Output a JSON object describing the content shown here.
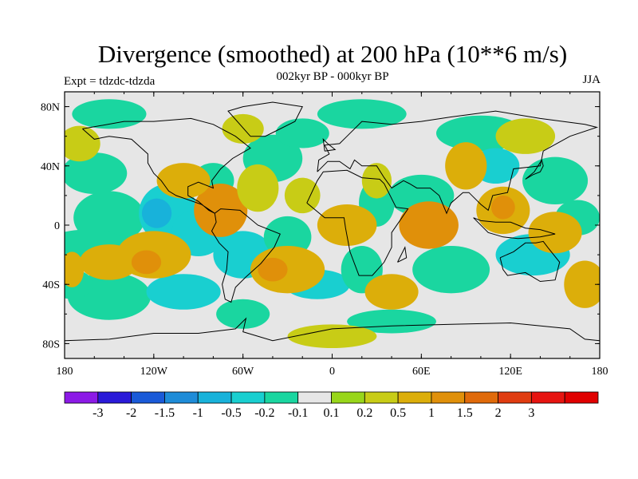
{
  "title": "Divergence (smoothed) at 200 hPa (10**6 m/s)",
  "subtitle": "002kyr BP - 000kyr BP",
  "experiment": "Expt = tdzdc-tdzda",
  "season": "JJA",
  "map": {
    "lon_ticks": [
      "180",
      "120W",
      "60W",
      "0",
      "60E",
      "120E",
      "180"
    ],
    "lat_ticks": [
      "80N",
      "40N",
      "0",
      "40S",
      "80S"
    ],
    "lon_range": [
      -180,
      180
    ],
    "lat_range": [
      -90,
      90
    ]
  },
  "colorbar": {
    "colors": [
      "#8c1ae6",
      "#2a1ad8",
      "#1a5ad8",
      "#1e8cd8",
      "#18b2da",
      "#19cfd0",
      "#1ad6a0",
      "#e6e6e6",
      "#98d61a",
      "#c8cc16",
      "#dcae0a",
      "#e0900a",
      "#e06a0a",
      "#e03c10",
      "#e61410",
      "#e00000"
    ],
    "labels": [
      "-3",
      "-2",
      "-1.5",
      "-1",
      "-0.5",
      "-0.2",
      "-0.1",
      "0.1",
      "0.2",
      "0.5",
      "1",
      "1.5",
      "2",
      "3"
    ]
  },
  "colors": {
    "background": "#e6e6e6",
    "coastline": "#000000"
  }
}
